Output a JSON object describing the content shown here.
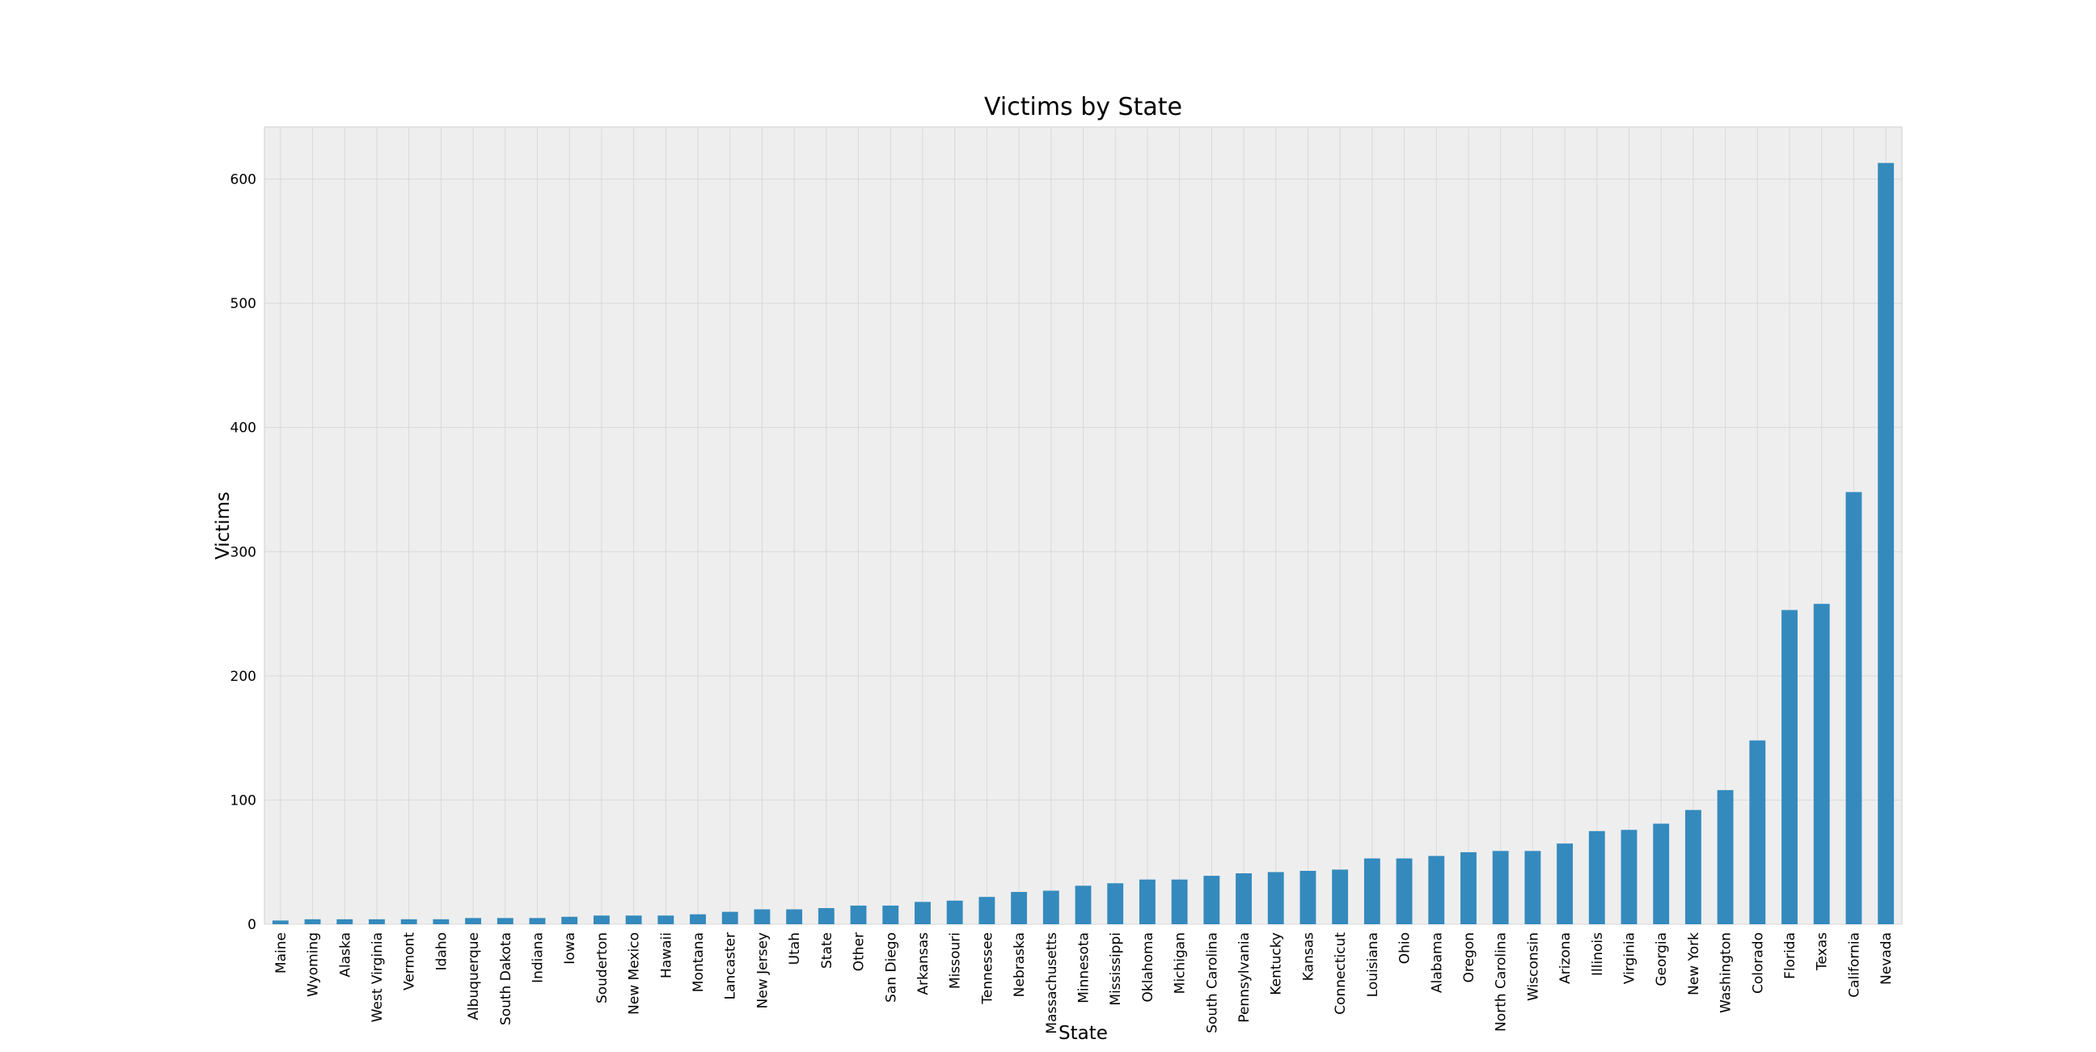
{
  "chart_data": {
    "type": "bar",
    "title": "Victims by State",
    "xlabel": "State",
    "ylabel": "Victims",
    "ylim": [
      0,
      642
    ],
    "yticks": [
      0,
      100,
      200,
      300,
      400,
      500,
      600
    ],
    "grid": true,
    "legend": "none",
    "colors": {
      "bar": "#348ABD",
      "plot_background": "#EEEEEE",
      "grid": "#D9D9D9"
    },
    "categories": [
      "Maine",
      "Wyoming",
      "Alaska",
      "West Virginia",
      "Vermont",
      "Idaho",
      "Albuquerque",
      "South Dakota",
      "Indiana",
      "Iowa",
      "Souderton",
      "New Mexico",
      "Hawaii",
      "Montana",
      "Lancaster",
      "New Jersey",
      "Utah",
      "State",
      "Other",
      "San Diego",
      "Arkansas",
      "Missouri",
      "Tennessee",
      "Nebraska",
      "Massachusetts",
      "Minnesota",
      "Mississippi",
      "Oklahoma",
      "Michigan",
      "South Carolina",
      "Pennsylvania",
      "Kentucky",
      "Kansas",
      "Connecticut",
      "Louisiana",
      "Ohio",
      "Alabama",
      "Oregon",
      "North Carolina",
      "Wisconsin",
      "Arizona",
      "Illinois",
      "Virginia",
      "Georgia",
      "New York",
      "Washington",
      "Colorado",
      "Florida",
      "Texas",
      "California",
      "Nevada"
    ],
    "values": [
      3,
      4,
      4,
      4,
      4,
      4,
      5,
      5,
      5,
      6,
      7,
      7,
      7,
      8,
      10,
      12,
      12,
      13,
      15,
      15,
      18,
      19,
      22,
      26,
      27,
      31,
      33,
      36,
      36,
      39,
      41,
      42,
      43,
      44,
      53,
      53,
      55,
      58,
      59,
      59,
      65,
      75,
      76,
      81,
      92,
      108,
      148,
      253,
      258,
      348,
      613
    ]
  }
}
